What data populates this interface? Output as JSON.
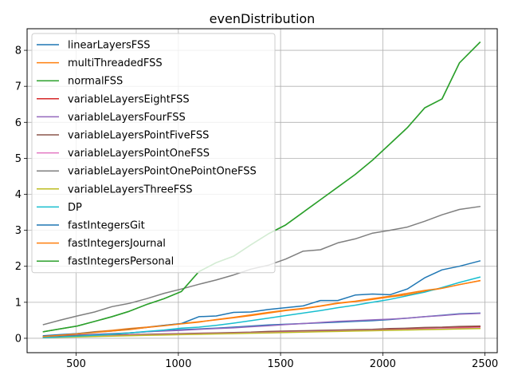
{
  "chart_data": {
    "type": "line",
    "title": "evenDistribution",
    "xlabel": "",
    "ylabel": "",
    "xlim": [
      260,
      2560
    ],
    "ylim": [
      -0.4,
      8.6
    ],
    "x_ticks": [
      500,
      1000,
      1500,
      2000,
      2500
    ],
    "y_ticks": [
      0,
      1,
      2,
      3,
      4,
      5,
      6,
      7,
      8
    ],
    "grid": true,
    "legend_position": "upper-left",
    "x": [
      340,
      420,
      505,
      590,
      675,
      760,
      845,
      930,
      1015,
      1100,
      1185,
      1270,
      1355,
      1440,
      1525,
      1610,
      1695,
      1780,
      1865,
      1950,
      2035,
      2120,
      2205,
      2290,
      2375,
      2475
    ],
    "series": [
      {
        "name": "linearLayersFSS",
        "color": "#1f77b4",
        "values": [
          0.05,
          0.07,
          0.09,
          0.11,
          0.13,
          0.15,
          0.18,
          0.21,
          0.24,
          0.26,
          0.28,
          0.31,
          0.34,
          0.37,
          0.39,
          0.41,
          0.43,
          0.45,
          0.47,
          0.49,
          0.52,
          0.56,
          0.6,
          0.64,
          0.68,
          0.7
        ]
      },
      {
        "name": "multiThreadedFSS",
        "color": "#ff7f0e",
        "values": [
          0.06,
          0.09,
          0.13,
          0.18,
          0.22,
          0.27,
          0.31,
          0.36,
          0.41,
          0.46,
          0.51,
          0.57,
          0.63,
          0.7,
          0.77,
          0.82,
          0.89,
          0.97,
          1.02,
          1.08,
          1.15,
          1.21,
          1.3,
          1.39,
          1.49,
          1.6
        ]
      },
      {
        "name": "normalFSS",
        "color": "#2ca02c",
        "values": [
          0.18,
          0.26,
          0.34,
          0.47,
          0.6,
          0.75,
          0.94,
          1.1,
          1.3,
          1.85,
          2.1,
          2.28,
          2.6,
          2.9,
          3.15,
          3.5,
          3.85,
          4.2,
          4.55,
          4.95,
          5.4,
          5.85,
          6.4,
          6.65,
          7.65,
          8.22
        ]
      },
      {
        "name": "variableLayersEightFSS",
        "color": "#d62728",
        "values": [
          0.02,
          0.04,
          0.05,
          0.07,
          0.08,
          0.09,
          0.1,
          0.11,
          0.12,
          0.13,
          0.14,
          0.15,
          0.16,
          0.18,
          0.19,
          0.2,
          0.21,
          0.22,
          0.23,
          0.24,
          0.25,
          0.26,
          0.28,
          0.3,
          0.31,
          0.32
        ]
      },
      {
        "name": "variableLayersFourFSS",
        "color": "#9467bd",
        "values": [
          0.04,
          0.06,
          0.08,
          0.1,
          0.12,
          0.15,
          0.18,
          0.2,
          0.22,
          0.25,
          0.27,
          0.29,
          0.32,
          0.35,
          0.38,
          0.41,
          0.44,
          0.47,
          0.49,
          0.51,
          0.53,
          0.56,
          0.6,
          0.63,
          0.67,
          0.69
        ]
      },
      {
        "name": "variableLayersPointFiveFSS",
        "color": "#8c564b",
        "values": [
          0.03,
          0.05,
          0.07,
          0.08,
          0.09,
          0.1,
          0.11,
          0.12,
          0.13,
          0.14,
          0.15,
          0.16,
          0.17,
          0.19,
          0.2,
          0.21,
          0.22,
          0.23,
          0.24,
          0.25,
          0.27,
          0.28,
          0.3,
          0.31,
          0.33,
          0.34
        ]
      },
      {
        "name": "variableLayersPointOneFSS",
        "color": "#e377c2",
        "values": [
          0.02,
          0.04,
          0.05,
          0.06,
          0.07,
          0.08,
          0.09,
          0.1,
          0.11,
          0.12,
          0.13,
          0.14,
          0.15,
          0.16,
          0.17,
          0.18,
          0.19,
          0.2,
          0.21,
          0.22,
          0.23,
          0.24,
          0.26,
          0.27,
          0.28,
          0.29
        ]
      },
      {
        "name": "variableLayersPointOnePointOneFSS",
        "color": "#7f7f7f",
        "values": [
          0.38,
          0.5,
          0.62,
          0.73,
          0.88,
          0.97,
          1.1,
          1.25,
          1.37,
          1.5,
          1.62,
          1.76,
          1.92,
          2.03,
          2.2,
          2.42,
          2.46,
          2.65,
          2.76,
          2.92,
          3.0,
          3.09,
          3.25,
          3.43,
          3.58,
          3.66
        ]
      },
      {
        "name": "variableLayersThreeFSS",
        "color": "#bcbd22",
        "values": [
          0.02,
          0.03,
          0.04,
          0.05,
          0.06,
          0.07,
          0.08,
          0.09,
          0.1,
          0.11,
          0.12,
          0.13,
          0.14,
          0.15,
          0.16,
          0.17,
          0.18,
          0.19,
          0.2,
          0.21,
          0.22,
          0.23,
          0.24,
          0.25,
          0.26,
          0.27
        ]
      },
      {
        "name": "DP",
        "color": "#17becf",
        "values": [
          0.02,
          0.04,
          0.06,
          0.08,
          0.11,
          0.15,
          0.19,
          0.23,
          0.28,
          0.31,
          0.36,
          0.42,
          0.49,
          0.56,
          0.63,
          0.7,
          0.77,
          0.85,
          0.92,
          1.0,
          1.08,
          1.18,
          1.28,
          1.41,
          1.55,
          1.7
        ]
      },
      {
        "name": "fastIntegersGit",
        "color": "#1f77b4",
        "values": [
          0.07,
          0.1,
          0.13,
          0.17,
          0.2,
          0.25,
          0.3,
          0.36,
          0.41,
          0.6,
          0.62,
          0.72,
          0.73,
          0.8,
          0.85,
          0.9,
          1.05,
          1.05,
          1.2,
          1.23,
          1.21,
          1.37,
          1.68,
          1.9,
          2.0,
          2.15
        ]
      },
      {
        "name": "fastIntegersJournal",
        "color": "#ff7f0e",
        "values": [
          0.05,
          0.08,
          0.12,
          0.16,
          0.2,
          0.24,
          0.3,
          0.35,
          0.4,
          0.45,
          0.52,
          0.58,
          0.65,
          0.72,
          0.78,
          0.83,
          0.9,
          0.98,
          1.03,
          1.1,
          1.17,
          1.25,
          1.33,
          1.39,
          1.49,
          1.6
        ]
      },
      {
        "name": "fastIntegersPersonal",
        "color": "#2ca02c",
        "values": [
          0.18,
          0.26,
          0.34,
          0.47,
          0.6,
          0.75,
          0.94,
          1.1,
          1.3,
          1.85,
          2.1,
          2.28,
          2.6,
          2.9,
          3.15,
          3.5,
          3.85,
          4.2,
          4.55,
          4.95,
          5.4,
          5.85,
          6.4,
          6.65,
          7.65,
          8.22
        ]
      }
    ]
  }
}
